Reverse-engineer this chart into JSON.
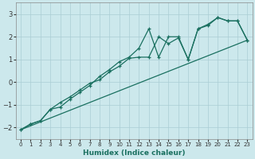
{
  "xlabel": "Humidex (Indice chaleur)",
  "bg_color": "#cce8ec",
  "grid_color": "#aacdd4",
  "line_color": "#1a7060",
  "xlim": [
    -0.5,
    23.5
  ],
  "ylim": [
    -2.5,
    3.5
  ],
  "xticks": [
    0,
    1,
    2,
    3,
    4,
    5,
    6,
    7,
    8,
    9,
    10,
    11,
    12,
    13,
    14,
    15,
    16,
    17,
    18,
    19,
    20,
    21,
    22,
    23
  ],
  "yticks": [
    -2,
    -1,
    0,
    1,
    2,
    3
  ],
  "series1_x": [
    0,
    1,
    2,
    3,
    4,
    5,
    6,
    7,
    8,
    9,
    10,
    11,
    12,
    13,
    14,
    15,
    16,
    17,
    18,
    19,
    20,
    21,
    22,
    23
  ],
  "series1_y": [
    -2.1,
    -1.85,
    -1.7,
    -1.2,
    -1.1,
    -0.75,
    -0.45,
    -0.15,
    0.25,
    0.55,
    0.9,
    1.1,
    1.5,
    2.35,
    1.1,
    2.0,
    2.0,
    1.0,
    2.35,
    2.5,
    2.85,
    2.7,
    2.7,
    1.85
  ],
  "series2_x": [
    0,
    1,
    2,
    3,
    4,
    5,
    6,
    7,
    8,
    9,
    10,
    11,
    12,
    13,
    14,
    15,
    16,
    17,
    18,
    19,
    20,
    21,
    22,
    23
  ],
  "series2_y": [
    -2.1,
    -1.85,
    -1.7,
    -1.2,
    -0.9,
    -0.65,
    -0.35,
    -0.05,
    0.1,
    0.45,
    0.7,
    1.05,
    1.1,
    1.1,
    2.0,
    1.7,
    1.95,
    1.0,
    2.35,
    2.55,
    2.85,
    2.7,
    2.7,
    1.85
  ],
  "trend_x": [
    0,
    23
  ],
  "trend_y": [
    -2.1,
    1.85
  ]
}
